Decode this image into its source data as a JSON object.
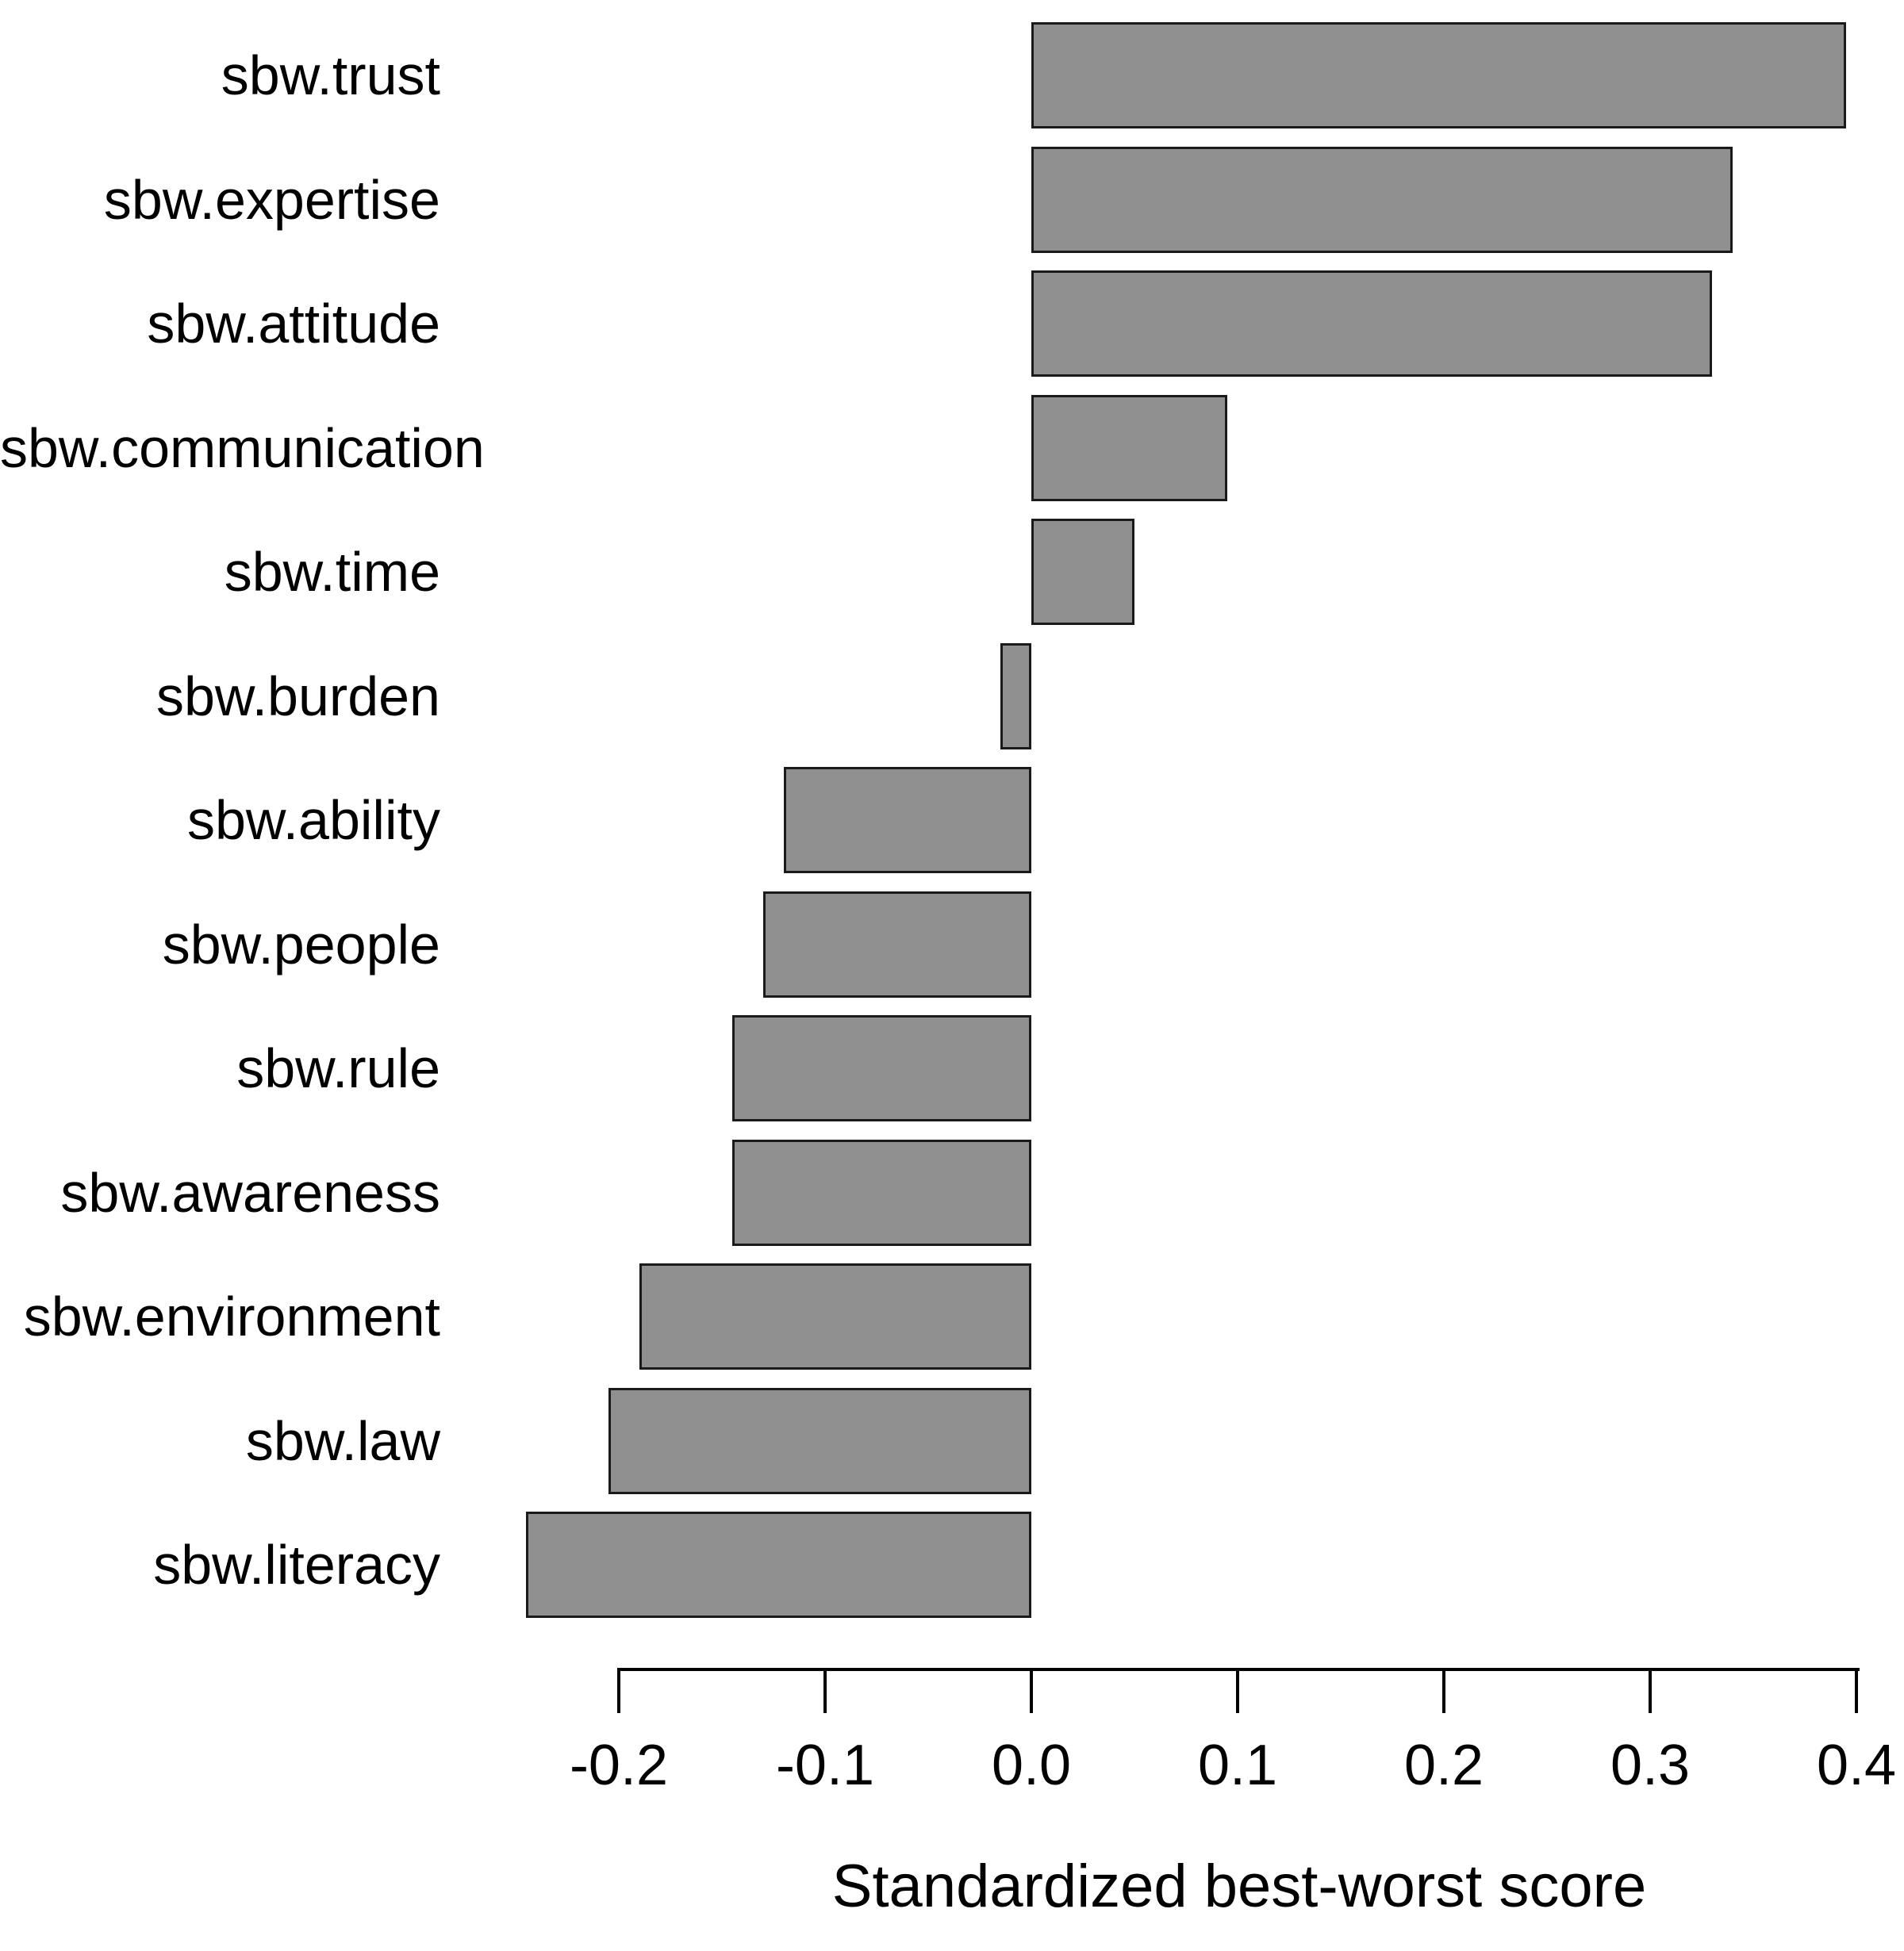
{
  "figure": {
    "background_color": "#ffffff",
    "bar_fill_color": "#909090",
    "bar_border_color": "#1a1a1a",
    "axis_color": "#000000",
    "text_color": "#000000"
  },
  "chart_data": {
    "type": "bar",
    "orientation": "horizontal",
    "title": "",
    "xlabel": "Standardized best-worst score",
    "ylabel": "",
    "categories": [
      "sbw.trust",
      "sbw.expertise",
      "sbw.attitude",
      "sbw.communication",
      "sbw.time",
      "sbw.burden",
      "sbw.ability",
      "sbw.people",
      "sbw.rule",
      "sbw.awareness",
      "sbw.environment",
      "sbw.law",
      "sbw.literacy"
    ],
    "values": [
      0.395,
      0.34,
      0.33,
      0.095,
      0.05,
      -0.015,
      -0.12,
      -0.13,
      -0.145,
      -0.145,
      -0.19,
      -0.205,
      -0.245
    ],
    "xlim": [
      -0.25,
      0.4
    ],
    "x_ticks": [
      -0.2,
      -0.1,
      0.0,
      0.1,
      0.2,
      0.3,
      0.4
    ],
    "x_tick_labels": [
      "-0.2",
      "-0.1",
      "0.0",
      "0.1",
      "0.2",
      "0.3",
      "0.4"
    ],
    "grid": false,
    "legend": null
  }
}
